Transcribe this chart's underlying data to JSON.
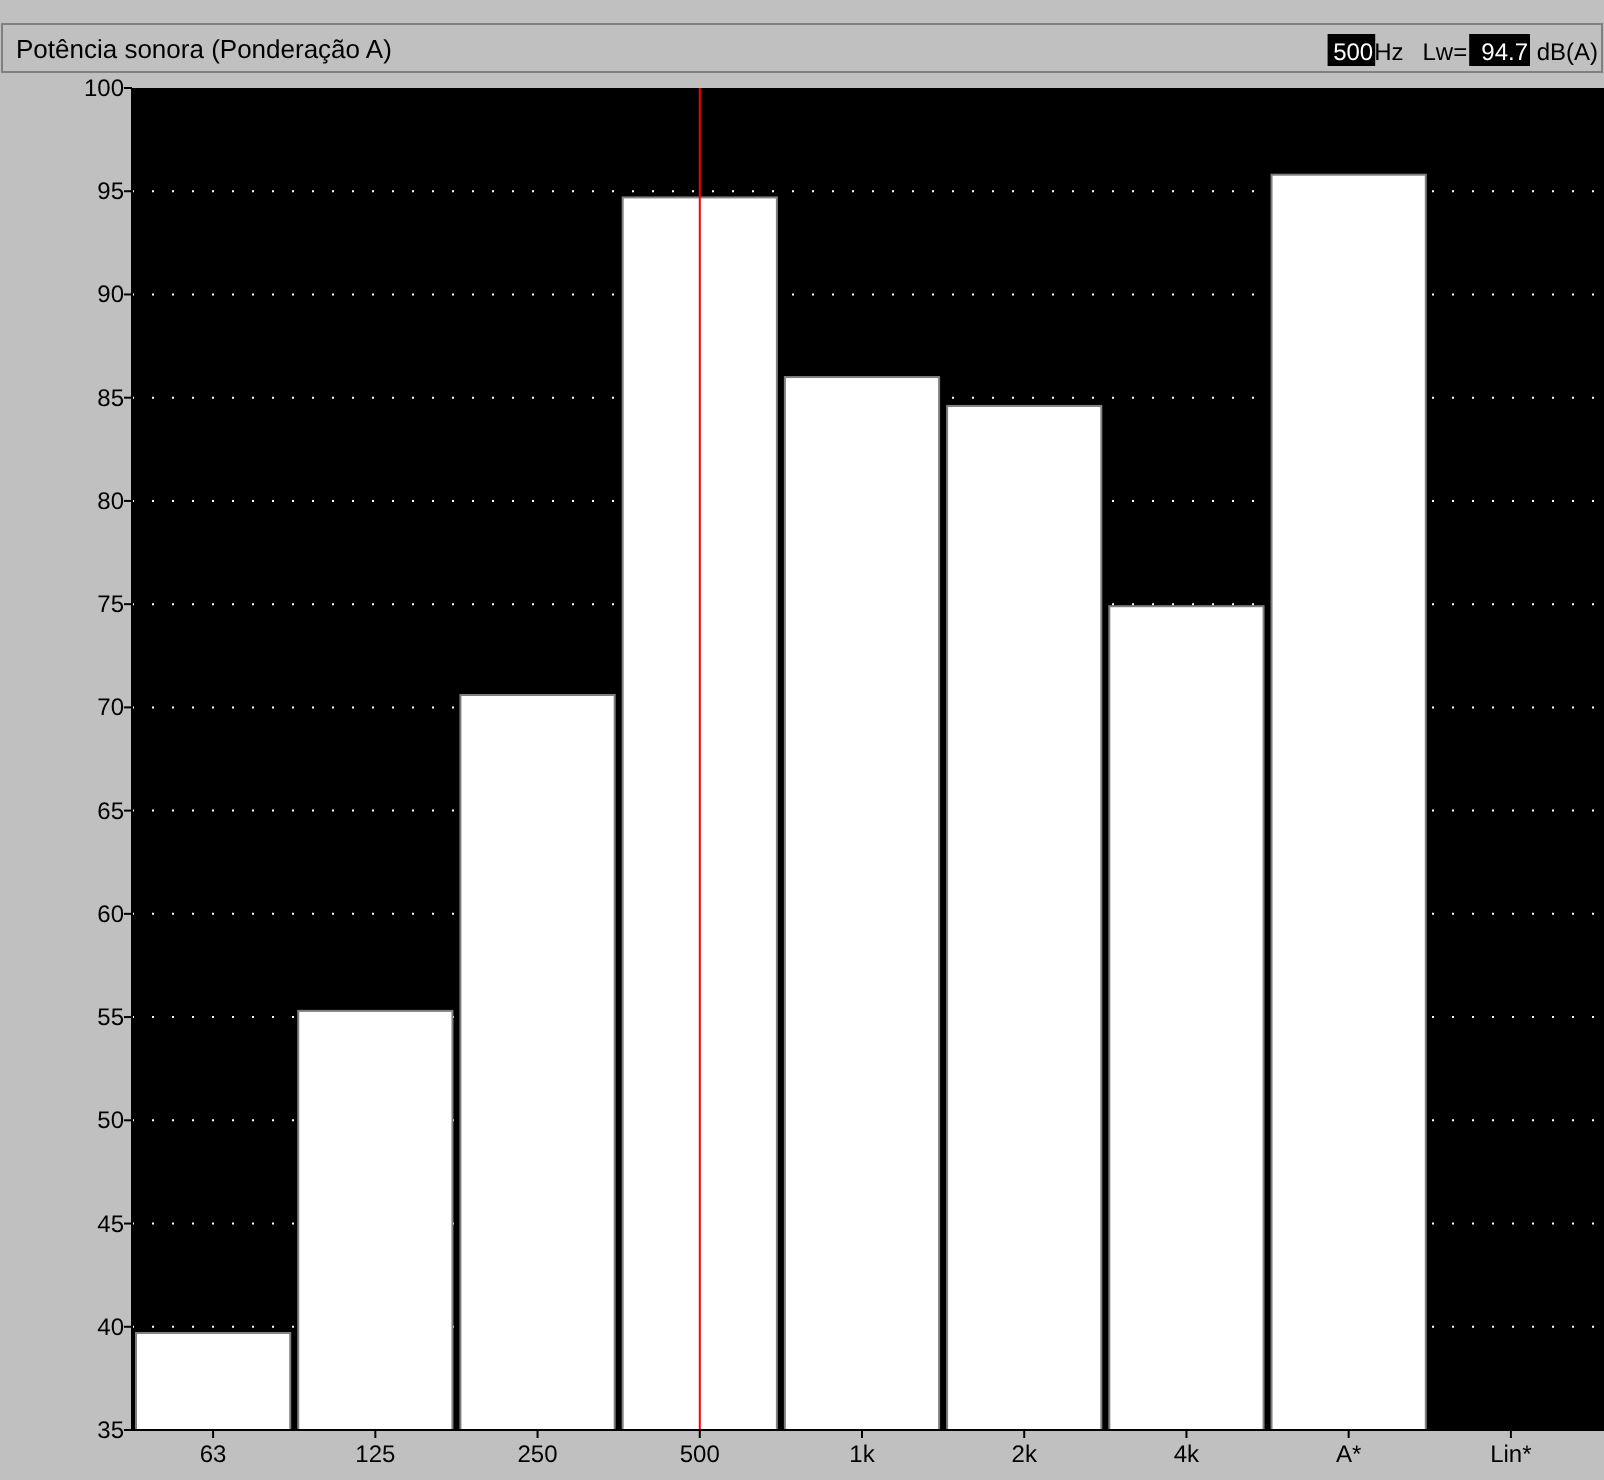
{
  "chart_data": {
    "type": "bar",
    "title": "Potência sonora (Ponderação A)",
    "annotations": [
      "500",
      "Hz",
      "Lw=",
      "94.7",
      "dB(A)"
    ],
    "categories": [
      "63",
      "125",
      "250",
      "500",
      "1k",
      "2k",
      "4k",
      "A*",
      "Lin*"
    ],
    "values": [
      39.7,
      55.3,
      70.6,
      94.7,
      86.0,
      84.6,
      74.9,
      95.8,
      null
    ],
    "color": "#ffffff",
    "ylim": [
      35,
      100
    ],
    "yticks": [
      35,
      40,
      45,
      50,
      55,
      60,
      65,
      70,
      75,
      80,
      85,
      90,
      95,
      100
    ],
    "grid": "y",
    "ref_lines": [
      {
        "axis": "x",
        "value": "500",
        "color": "#ff0000"
      }
    ]
  }
}
